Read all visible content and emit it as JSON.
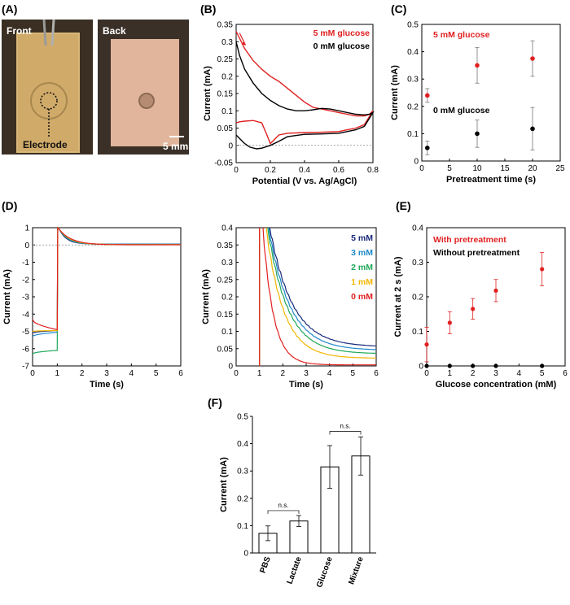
{
  "panels": {
    "A": {
      "label": "(A)",
      "front_label": "Front",
      "back_label": "Back",
      "electrode_label": "Electrode",
      "scale_label": "5 mm"
    },
    "B": {
      "label": "(B)"
    },
    "C": {
      "label": "(C)"
    },
    "D": {
      "label": "(D)"
    },
    "E": {
      "label": "(E)"
    },
    "F": {
      "label": "(F)"
    }
  },
  "chart_data": [
    {
      "id": "B",
      "type": "line",
      "title": "",
      "xlabel": "Potential (V vs. Ag/AgCl)",
      "ylabel": "Current (mA)",
      "xlim": [
        0,
        0.8
      ],
      "ylim": [
        -0.05,
        0.35
      ],
      "xticks": [
        0,
        0.2,
        0.4,
        0.6,
        0.8
      ],
      "yticks": [
        -0.05,
        0,
        0.05,
        0.1,
        0.15,
        0.2,
        0.25,
        0.3,
        0.35
      ],
      "xtick_labels": [
        "0",
        "0.2",
        "0.4",
        "0.6",
        "0.8"
      ],
      "ytick_labels": [
        "-0.05",
        "0",
        "0.05",
        "0.1",
        "0.15",
        "0.2",
        "0.25",
        "0.3",
        "0.35"
      ],
      "legend": [
        "5 mM glucose",
        "0 mM glucose"
      ],
      "series": [
        {
          "name": "5 mM glucose",
          "color": "#e02020",
          "points": [
            [
              0,
              0.33
            ],
            [
              0.02,
              0.31
            ],
            [
              0.05,
              0.28
            ],
            [
              0.1,
              0.245
            ],
            [
              0.15,
              0.22
            ],
            [
              0.2,
              0.2
            ],
            [
              0.25,
              0.185
            ],
            [
              0.3,
              0.165
            ],
            [
              0.35,
              0.145
            ],
            [
              0.4,
              0.125
            ],
            [
              0.45,
              0.11
            ],
            [
              0.5,
              0.105
            ],
            [
              0.55,
              0.1
            ],
            [
              0.6,
              0.095
            ],
            [
              0.65,
              0.09
            ],
            [
              0.7,
              0.085
            ],
            [
              0.75,
              0.085
            ],
            [
              0.78,
              0.09
            ],
            [
              0.8,
              0.1
            ],
            [
              0.75,
              0.06
            ],
            [
              0.7,
              0.05
            ],
            [
              0.65,
              0.045
            ],
            [
              0.6,
              0.04
            ],
            [
              0.5,
              0.038
            ],
            [
              0.4,
              0.037
            ],
            [
              0.3,
              0.035
            ],
            [
              0.25,
              0.03
            ],
            [
              0.22,
              0.015
            ],
            [
              0.2,
              0.005
            ],
            [
              0.18,
              0.03
            ],
            [
              0.15,
              0.065
            ],
            [
              0.1,
              0.072
            ],
            [
              0.05,
              0.07
            ],
            [
              0.02,
              0.068
            ],
            [
              0,
              0.065
            ]
          ]
        },
        {
          "name": "0 mM glucose",
          "color": "#000000",
          "points": [
            [
              0,
              0.3
            ],
            [
              0.02,
              0.26
            ],
            [
              0.05,
              0.22
            ],
            [
              0.1,
              0.18
            ],
            [
              0.15,
              0.15
            ],
            [
              0.2,
              0.13
            ],
            [
              0.25,
              0.115
            ],
            [
              0.3,
              0.105
            ],
            [
              0.35,
              0.1
            ],
            [
              0.4,
              0.1
            ],
            [
              0.45,
              0.103
            ],
            [
              0.5,
              0.107
            ],
            [
              0.55,
              0.105
            ],
            [
              0.6,
              0.1
            ],
            [
              0.65,
              0.095
            ],
            [
              0.7,
              0.09
            ],
            [
              0.75,
              0.088
            ],
            [
              0.78,
              0.09
            ],
            [
              0.8,
              0.095
            ],
            [
              0.75,
              0.055
            ],
            [
              0.7,
              0.045
            ],
            [
              0.6,
              0.035
            ],
            [
              0.5,
              0.033
            ],
            [
              0.4,
              0.032
            ],
            [
              0.3,
              0.025
            ],
            [
              0.25,
              0.012
            ],
            [
              0.2,
              0.0
            ],
            [
              0.15,
              -0.008
            ],
            [
              0.12,
              -0.01
            ],
            [
              0.08,
              -0.005
            ],
            [
              0.05,
              0.005
            ],
            [
              0.02,
              0.02
            ],
            [
              0,
              0.03
            ]
          ]
        }
      ],
      "reference_line": 0
    },
    {
      "id": "C",
      "type": "scatter",
      "xlabel": "Pretreatment time (s)",
      "ylabel": "Current (mA)",
      "xlim": [
        0,
        25
      ],
      "ylim": [
        0,
        0.5
      ],
      "xticks": [
        0,
        5,
        10,
        15,
        20,
        25
      ],
      "yticks": [
        0,
        0.1,
        0.2,
        0.3,
        0.4,
        0.5
      ],
      "xtick_labels": [
        "0",
        "5",
        "10",
        "15",
        "20",
        "25"
      ],
      "ytick_labels": [
        "0",
        "0.1",
        "0.2",
        "0.3",
        "0.4",
        "0.5"
      ],
      "annotations": [
        "5 mM glucose",
        "0 mM glucose"
      ],
      "series": [
        {
          "name": "5 mM glucose",
          "color": "#e02020",
          "x": [
            1,
            10,
            20
          ],
          "y": [
            0.24,
            0.35,
            0.375
          ],
          "err": [
            0.025,
            0.065,
            0.065
          ]
        },
        {
          "name": "0 mM glucose",
          "color": "#000000",
          "x": [
            1,
            10,
            20
          ],
          "y": [
            0.048,
            0.1,
            0.118
          ],
          "err": [
            0.025,
            0.05,
            0.078
          ]
        }
      ]
    },
    {
      "id": "D1",
      "type": "line",
      "xlabel": "Time (s)",
      "ylabel": "Current (mA)",
      "xlim": [
        0,
        6
      ],
      "ylim": [
        -7,
        1
      ],
      "xticks": [
        0,
        1,
        2,
        3,
        4,
        5,
        6
      ],
      "yticks": [
        -7,
        -6,
        -5,
        -4,
        -3,
        -2,
        -1,
        0,
        1
      ],
      "xtick_labels": [
        "0",
        "1",
        "2",
        "3",
        "4",
        "5",
        "6"
      ],
      "ytick_labels": [
        "-7",
        "-6",
        "-5",
        "-4",
        "-3",
        "-2",
        "-1",
        "0",
        "1"
      ],
      "series": [
        {
          "name": "5 mM",
          "color": "#1a2a7a",
          "pre": [
            -5.1,
            -4.95
          ]
        },
        {
          "name": "3 mM",
          "color": "#1e88c8",
          "pre": [
            -5.3,
            -5.05
          ]
        },
        {
          "name": "2 mM",
          "color": "#22a85a",
          "pre": [
            -6.3,
            -6.1
          ]
        },
        {
          "name": "1 mM",
          "color": "#f2b600",
          "pre": [
            -5.0,
            -4.95
          ]
        },
        {
          "name": "0 mM",
          "color": "#e02020",
          "pre": [
            -4.3,
            -4.9
          ]
        }
      ],
      "reference_line": 0
    },
    {
      "id": "D2",
      "type": "line",
      "xlabel": "Time (s)",
      "ylabel": "Current (mA)",
      "xlim": [
        0,
        6
      ],
      "ylim": [
        0,
        0.4
      ],
      "xticks": [
        0,
        1,
        2,
        3,
        4,
        5,
        6
      ],
      "yticks": [
        0,
        0.05,
        0.1,
        0.15,
        0.2,
        0.25,
        0.3,
        0.35,
        0.4
      ],
      "xtick_labels": [
        "0",
        "1",
        "2",
        "3",
        "4",
        "5",
        "6"
      ],
      "ytick_labels": [
        "0",
        "0.05",
        "0.1",
        "0.15",
        "0.2",
        "0.25",
        "0.3",
        "0.35",
        "0.4"
      ],
      "legend": [
        "5 mM",
        "3 mM",
        "2 mM",
        "1 mM",
        "0 mM"
      ],
      "series": [
        {
          "name": "5 mM",
          "color": "#1a2a7a",
          "tau": 0.95,
          "base": 0.055
        },
        {
          "name": "3 mM",
          "color": "#1e88c8",
          "tau": 0.9,
          "base": 0.045
        },
        {
          "name": "2 mM",
          "color": "#22a85a",
          "tau": 0.85,
          "base": 0.035
        },
        {
          "name": "1 mM",
          "color": "#f2b600",
          "tau": 0.75,
          "base": 0.022
        },
        {
          "name": "0 mM",
          "color": "#e02020",
          "tau": 0.45,
          "base": 0.003
        }
      ]
    },
    {
      "id": "E",
      "type": "scatter",
      "xlabel": "Glucose concentration (mM)",
      "ylabel": "Current at 2 s (mA)",
      "xlim": [
        0,
        6
      ],
      "ylim": [
        0,
        0.4
      ],
      "xticks": [
        0,
        1,
        2,
        3,
        4,
        5,
        6
      ],
      "yticks": [
        0,
        0.1,
        0.2,
        0.3,
        0.4
      ],
      "xtick_labels": [
        "0",
        "1",
        "2",
        "3",
        "4",
        "5",
        "6"
      ],
      "ytick_labels": [
        "0",
        "0.1",
        "0.2",
        "0.3",
        "0.4"
      ],
      "legend": [
        "With pretreatment",
        "Without pretreatment"
      ],
      "series": [
        {
          "name": "With pretreatment",
          "color": "#e02020",
          "x": [
            0,
            1,
            2,
            3,
            5
          ],
          "y": [
            0.062,
            0.125,
            0.165,
            0.218,
            0.28
          ],
          "err": [
            0.05,
            0.032,
            0.03,
            0.032,
            0.048
          ]
        },
        {
          "name": "Without pretreatment",
          "color": "#000000",
          "x": [
            0,
            1,
            2,
            3,
            5
          ],
          "y": [
            0,
            0,
            0,
            0,
            0
          ],
          "err": [
            0,
            0,
            0,
            0,
            0
          ]
        }
      ]
    },
    {
      "id": "F",
      "type": "bar",
      "ylabel": "Current (mA)",
      "ylim": [
        0,
        0.5
      ],
      "yticks": [
        0,
        0.1,
        0.2,
        0.3,
        0.4,
        0.5
      ],
      "ytick_labels": [
        "0",
        "0.1",
        "0.2",
        "0.3",
        "0.4",
        "0.5"
      ],
      "categories": [
        "PBS",
        "Lactate",
        "Glucose",
        "Mixture"
      ],
      "values": [
        0.072,
        0.117,
        0.315,
        0.355
      ],
      "err": [
        0.027,
        0.02,
        0.078,
        0.07
      ],
      "annotations": [
        "n.s.",
        "n.s."
      ]
    }
  ]
}
